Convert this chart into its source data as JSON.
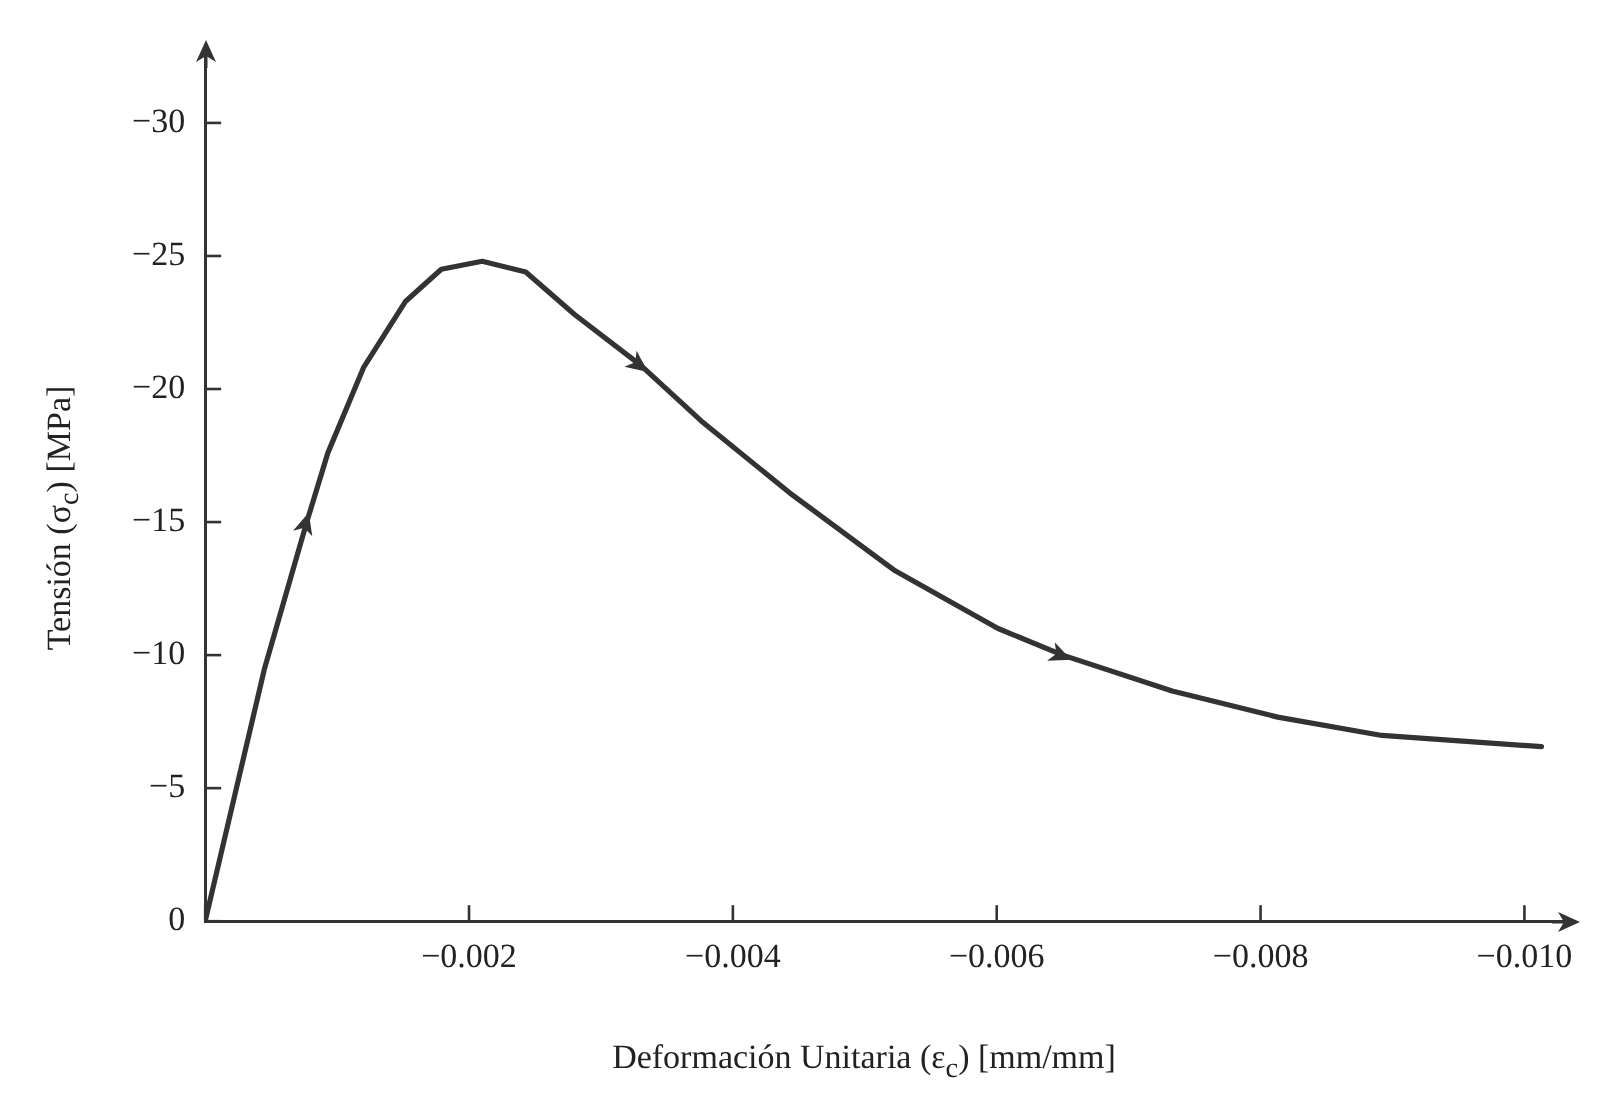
{
  "chart_data": {
    "type": "line",
    "xlabel": "Deformación Unitaria (ε$_{c}$) [mm/mm]",
    "ylabel": "Tensión (σ$_{c}$) [MPa]",
    "xlim": [
      0,
      -0.0103
    ],
    "ylim": [
      0,
      -32.5
    ],
    "xticks": [
      {
        "value": 0,
        "label": null
      },
      {
        "value": -0.002,
        "label": "−0.002"
      },
      {
        "value": -0.004,
        "label": "−0.004"
      },
      {
        "value": -0.006,
        "label": "−0.006"
      },
      {
        "value": -0.008,
        "label": "−0.008"
      },
      {
        "value": -0.01,
        "label": "−0.010"
      }
    ],
    "yticks": [
      {
        "value": 0,
        "label": "0"
      },
      {
        "value": -5,
        "label": "−5"
      },
      {
        "value": -10,
        "label": "−10"
      },
      {
        "value": -15,
        "label": "−15"
      },
      {
        "value": -20,
        "label": "−20"
      },
      {
        "value": -25,
        "label": "−25"
      },
      {
        "value": -30,
        "label": "−30"
      }
    ],
    "grid": false,
    "legend": false,
    "marker": "none",
    "line_style": "solid",
    "series": [
      {
        "color": "#333333",
        "x": [
          0,
          -0.00045,
          -0.00077,
          -0.00093,
          -0.0012,
          -0.00152,
          -0.00179,
          -0.0021,
          -0.00243,
          -0.0028,
          -0.0033,
          -0.00376,
          -0.00443,
          -0.00522,
          -0.00601,
          -0.0065,
          -0.00733,
          -0.00813,
          -0.00892,
          -0.01013
        ],
        "values": [
          0,
          -9.5,
          -15.0,
          -17.6,
          -20.8,
          -23.3,
          -24.5,
          -24.8,
          -24.4,
          -22.8,
          -20.9,
          -18.8,
          -16.1,
          -13.2,
          -11.0,
          -10.0,
          -8.65,
          -7.67,
          -6.98,
          -6.56
        ]
      }
    ]
  }
}
